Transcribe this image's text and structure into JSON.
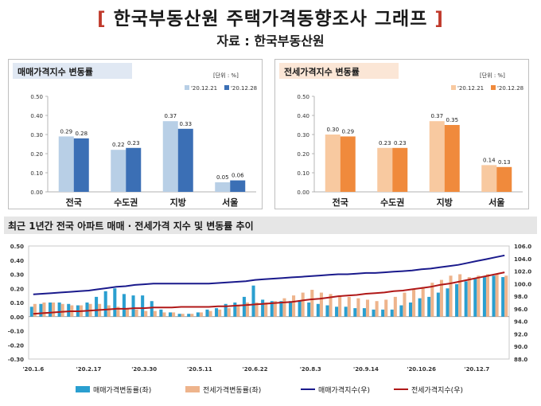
{
  "header": {
    "bracket_open": "[",
    "title": "한국부동산원 주택가격동향조사 그래프",
    "bracket_close": "]",
    "source": "자료 : 한국부동산원"
  },
  "colors": {
    "sale_light": "#b8cfe6",
    "sale_dark": "#3b6fb5",
    "rent_light": "#f8c9a0",
    "rent_dark": "#f08a3c",
    "sale_bar_bottom": "#2a9fd0",
    "rent_bar_bottom": "#eeb48c",
    "sale_index_line": "#1a1a8c",
    "rent_index_line": "#b01818"
  },
  "chart_data": [
    {
      "type": "bar",
      "title": "매매가격지수 변동률",
      "unit": "[단위 : %]",
      "categories": [
        "전국",
        "수도권",
        "지방",
        "서울"
      ],
      "series": [
        {
          "name": "'20.12.21",
          "values": [
            0.29,
            0.22,
            0.37,
            0.05
          ],
          "labels": [
            "0.29",
            "0.22",
            "0.37",
            "0.05"
          ]
        },
        {
          "name": "'20.12.28",
          "values": [
            0.28,
            0.23,
            0.33,
            0.06
          ],
          "labels": [
            "0.28",
            "0.23",
            "0.33",
            "0.06"
          ]
        }
      ],
      "ylim": [
        0,
        0.5
      ],
      "yticks": [
        "0.00",
        "0.10",
        "0.20",
        "0.30",
        "0.40",
        "0.50"
      ],
      "legend": "top-right"
    },
    {
      "type": "bar",
      "title": "전세가격지수 변동률",
      "unit": "[단위 : %]",
      "categories": [
        "전국",
        "수도권",
        "지방",
        "서울"
      ],
      "series": [
        {
          "name": "'20.12.21",
          "values": [
            0.3,
            0.23,
            0.37,
            0.14
          ],
          "labels": [
            "0.30",
            "0.23",
            "0.37",
            "0.14"
          ]
        },
        {
          "name": "'20.12.28",
          "values": [
            0.29,
            0.23,
            0.35,
            0.13
          ],
          "labels": [
            "0.29",
            "0.23",
            "0.35",
            "0.13"
          ]
        }
      ],
      "ylim": [
        0,
        0.5
      ],
      "yticks": [
        "0.00",
        "0.10",
        "0.20",
        "0.30",
        "0.40",
        "0.50"
      ],
      "legend": "top-right"
    },
    {
      "type": "bar+line",
      "title": "최근 1년간 전국 아파트 매매 · 전세가격 지수 및 변동률 추이",
      "x_tick_labels": [
        "'20.1.6",
        "'20.2.17",
        "'20.3.30",
        "'20.5.11",
        "'20.6.22",
        "'20.8.3",
        "'20.9.14",
        "'20.10.26",
        "'20.12.7"
      ],
      "x_tick_index": [
        0,
        6,
        12,
        18,
        24,
        30,
        36,
        42,
        48
      ],
      "y_left_ticks": [
        "-0.30",
        "-0.20",
        "-0.10",
        "0.00",
        "0.10",
        "0.20",
        "0.30",
        "0.40",
        "0.50"
      ],
      "y_left_lim": [
        -0.3,
        0.5
      ],
      "y_right_ticks": [
        "88.0",
        "90.0",
        "92.0",
        "94.0",
        "96.0",
        "98.0",
        "100.0",
        "102.0",
        "104.0",
        "106.0"
      ],
      "y_right_lim": [
        88,
        106
      ],
      "sale_change": [
        0.07,
        0.09,
        0.1,
        0.1,
        0.09,
        0.08,
        0.1,
        0.14,
        0.18,
        0.2,
        0.16,
        0.15,
        0.15,
        0.11,
        0.05,
        0.03,
        0.02,
        0.02,
        0.03,
        0.05,
        0.06,
        0.09,
        0.1,
        0.14,
        0.22,
        0.12,
        0.11,
        0.11,
        0.11,
        0.11,
        0.1,
        0.09,
        0.08,
        0.07,
        0.07,
        0.06,
        0.06,
        0.05,
        0.05,
        0.05,
        0.08,
        0.1,
        0.13,
        0.14,
        0.17,
        0.2,
        0.23,
        0.25,
        0.27,
        0.28,
        0.29,
        0.28
      ],
      "rent_change": [
        0.09,
        0.1,
        0.1,
        0.09,
        0.08,
        0.08,
        0.09,
        0.09,
        0.08,
        0.07,
        0.06,
        0.05,
        0.04,
        0.04,
        0.03,
        0.03,
        0.02,
        0.02,
        0.03,
        0.04,
        0.05,
        0.06,
        0.08,
        0.1,
        0.1,
        0.1,
        0.11,
        0.13,
        0.15,
        0.17,
        0.19,
        0.17,
        0.16,
        0.15,
        0.14,
        0.13,
        0.12,
        0.11,
        0.12,
        0.14,
        0.17,
        0.19,
        0.21,
        0.24,
        0.26,
        0.29,
        0.3,
        0.28,
        0.29,
        0.3,
        0.3,
        0.29
      ],
      "sale_index": [
        98.3,
        98.4,
        98.5,
        98.6,
        98.7,
        98.8,
        98.9,
        99.1,
        99.3,
        99.5,
        99.6,
        99.8,
        99.9,
        100.0,
        100.0,
        100.0,
        100.0,
        100.0,
        100.0,
        100.0,
        100.1,
        100.2,
        100.3,
        100.4,
        100.6,
        100.7,
        100.8,
        100.9,
        101.0,
        101.1,
        101.2,
        101.3,
        101.4,
        101.5,
        101.5,
        101.6,
        101.7,
        101.7,
        101.8,
        101.9,
        102.0,
        102.1,
        102.3,
        102.4,
        102.6,
        102.8,
        103.0,
        103.3,
        103.6,
        103.9,
        104.2,
        104.5
      ],
      "rent_index": [
        95.2,
        95.3,
        95.4,
        95.5,
        95.6,
        95.6,
        95.7,
        95.8,
        95.9,
        96.0,
        96.0,
        96.1,
        96.1,
        96.2,
        96.2,
        96.2,
        96.3,
        96.3,
        96.3,
        96.3,
        96.4,
        96.4,
        96.5,
        96.6,
        96.7,
        96.8,
        96.9,
        97.0,
        97.1,
        97.3,
        97.5,
        97.6,
        97.8,
        98.0,
        98.1,
        98.2,
        98.4,
        98.5,
        98.6,
        98.8,
        98.9,
        99.1,
        99.3,
        99.5,
        99.8,
        100.0,
        100.3,
        100.6,
        100.9,
        101.2,
        101.5,
        101.8
      ],
      "legend_labels": [
        "매매가격변동률(좌)",
        "전세가격변동률(좌)",
        "매매가격지수(우)",
        "전세가격지수(우)"
      ],
      "legend": "bottom"
    }
  ]
}
